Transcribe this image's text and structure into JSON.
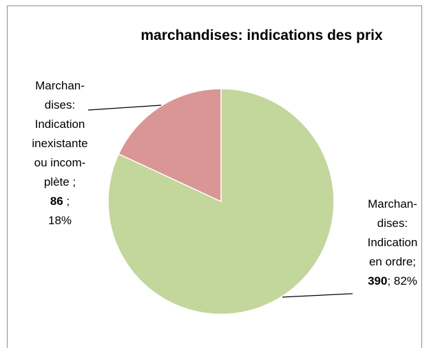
{
  "chart_data": {
    "type": "pie",
    "title": "marchandises: indications des prix",
    "categories": [
      [
        "Marchan-",
        "dises:",
        "Indication",
        "en ordre;"
      ],
      [
        "Marchan-",
        "dises:",
        "Indication",
        "inexistante",
        "ou incom-",
        "plète ;"
      ]
    ],
    "values": [
      390,
      86
    ],
    "separators": [
      "; ",
      " ;"
    ],
    "percent": [
      82,
      18
    ],
    "percent_labels": [
      "82%",
      "18%"
    ],
    "colors": [
      "#c3d69b",
      "#d99694"
    ]
  }
}
